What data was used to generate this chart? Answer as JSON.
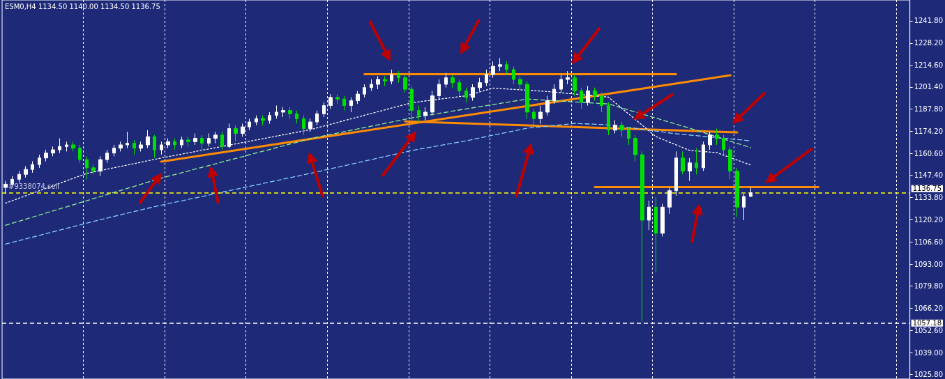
{
  "chart_data": {
    "type": "candlestick",
    "title": "ESM0,H4  1134.50 1140.00 1134.50 1136.75",
    "annotations": [
      "#9338074 sell"
    ],
    "categories": [
      null,
      null,
      null,
      null,
      null,
      null,
      null,
      null,
      null,
      null,
      null,
      null,
      null,
      null,
      null,
      null,
      null,
      null,
      null,
      null,
      null,
      null,
      null,
      null,
      null,
      null,
      null,
      null,
      null,
      null,
      null,
      null,
      null,
      null,
      null,
      null,
      null,
      null,
      null,
      null,
      null,
      null,
      null,
      null,
      null,
      null,
      null,
      null,
      null,
      null,
      null,
      null,
      null,
      null,
      null,
      null,
      null,
      null,
      null,
      null,
      null,
      null,
      null,
      null,
      null,
      null,
      null,
      null,
      null,
      null,
      null,
      null,
      null,
      null,
      null,
      null,
      null,
      null,
      null,
      null,
      null,
      null,
      null,
      null,
      null,
      null,
      null,
      null,
      null,
      null,
      null,
      null,
      null,
      null,
      null,
      null,
      null,
      null,
      null,
      null,
      null,
      null,
      null,
      null,
      null,
      null,
      null,
      null,
      null,
      null,
      null,
      null,
      null,
      null,
      null,
      null,
      null,
      null,
      null,
      null,
      null,
      null,
      null,
      null,
      null,
      null,
      null,
      null,
      null,
      null,
      null,
      null,
      null,
      null
    ],
    "colors": [
      "#ffffff",
      "#ffffff",
      "#ffffff",
      "#ffffff",
      "#ffffff",
      "#ffffff",
      "#ffffff",
      "#ffffff",
      "#ffffff",
      "#ffffff",
      "#00e000",
      "#00e000",
      "#00e000",
      "#00e000",
      "#ffffff",
      "#ffffff",
      "#ffffff",
      "#ffffff",
      "#ffffff",
      "#00e000",
      "#ffffff",
      "#ffffff",
      "#00e000",
      "#ffffff",
      "#ffffff",
      "#00e000",
      "#ffffff",
      "#00e000",
      "#ffffff",
      "#00e000",
      "#ffffff",
      "#ffffff",
      "#00e000",
      "#ffffff",
      "#00e000",
      "#ffffff",
      "#ffffff",
      "#ffffff",
      "#00e000",
      "#ffffff",
      "#ffffff",
      "#ffffff",
      "#00e000",
      "#00e000",
      "#00e000",
      "#ffffff",
      "#ffffff",
      "#ffffff",
      "#ffffff",
      "#00e000",
      "#00e000",
      "#ffffff",
      "#ffffff",
      "#ffffff",
      "#ffffff",
      "#ffffff",
      "#00e000",
      "#ffffff",
      "#00e000",
      "#00e000",
      "#00e000",
      "#00e000",
      "#ffffff",
      "#ffffff",
      "#ffffff",
      "#ffffff",
      "#00e000",
      "#00e000",
      "#00e000",
      "#ffffff",
      "#ffffff",
      "#ffffff",
      "#ffffff",
      "#ffffff",
      "#00e000",
      "#00e000",
      "#00e000",
      "#00e000",
      "#00e000",
      "#ffffff",
      "#ffffff",
      "#ffffff",
      "#ffffff",
      "#ffffff",
      "#00e000",
      "#00e000",
      "#ffffff",
      "#00e000",
      "#00e000",
      "#00e000",
      "#ffffff",
      "#00e000",
      "#00e000",
      "#00e000",
      "#00e000",
      "#ffffff",
      "#00e000",
      "#ffffff",
      "#ffffff",
      "#ffffff",
      "#00e000",
      "#ffffff",
      "#00e000",
      "#ffffff",
      "#ffffff",
      "#00e000",
      "#00e000",
      "#00e000",
      "#00e000",
      "#ffffff",
      "#ffffff",
      null,
      null,
      null,
      null,
      null,
      null,
      null,
      null,
      null,
      null,
      null,
      null,
      null,
      null,
      null,
      null,
      null,
      null,
      null,
      null,
      null,
      null,
      null
    ],
    "ohlc": [
      [
        1140,
        1144,
        1136,
        1142
      ],
      [
        1142,
        1147,
        1140,
        1145
      ],
      [
        1145,
        1150,
        1143,
        1148
      ],
      [
        1148,
        1153,
        1146,
        1151
      ],
      [
        1151,
        1156,
        1149,
        1154
      ],
      [
        1154,
        1160,
        1152,
        1158
      ],
      [
        1158,
        1163,
        1156,
        1161
      ],
      [
        1161,
        1165,
        1159,
        1163
      ],
      [
        1163,
        1170,
        1161,
        1165
      ],
      [
        1165,
        1168,
        1162,
        1166
      ],
      [
        1166,
        1168,
        1162,
        1164
      ],
      [
        1164,
        1166,
        1155,
        1157
      ],
      [
        1157,
        1159,
        1145,
        1152
      ],
      [
        1152,
        1154,
        1148,
        1150
      ],
      [
        1150,
        1159,
        1147,
        1157
      ],
      [
        1157,
        1163,
        1155,
        1161
      ],
      [
        1161,
        1166,
        1159,
        1164
      ],
      [
        1164,
        1168,
        1162,
        1166
      ],
      [
        1166,
        1174,
        1164,
        1167
      ],
      [
        1167,
        1169,
        1160,
        1164
      ],
      [
        1164,
        1168,
        1162,
        1166
      ],
      [
        1166,
        1175,
        1164,
        1171
      ],
      [
        1171,
        1172,
        1158,
        1163
      ],
      [
        1163,
        1168,
        1160,
        1166
      ],
      [
        1166,
        1170,
        1164,
        1168
      ],
      [
        1168,
        1170,
        1163,
        1166
      ],
      [
        1166,
        1171,
        1164,
        1169
      ],
      [
        1169,
        1171,
        1165,
        1168
      ],
      [
        1168,
        1173,
        1166,
        1170
      ],
      [
        1170,
        1172,
        1163,
        1167
      ],
      [
        1167,
        1173,
        1165,
        1170
      ],
      [
        1170,
        1174,
        1167,
        1172
      ],
      [
        1172,
        1174,
        1163,
        1165
      ],
      [
        1165,
        1179,
        1164,
        1176
      ],
      [
        1176,
        1178,
        1168,
        1173
      ],
      [
        1173,
        1179,
        1171,
        1177
      ],
      [
        1177,
        1182,
        1175,
        1180
      ],
      [
        1180,
        1184,
        1178,
        1182
      ],
      [
        1182,
        1184,
        1178,
        1181
      ],
      [
        1181,
        1186,
        1179,
        1184
      ],
      [
        1184,
        1190,
        1182,
        1186
      ],
      [
        1186,
        1189,
        1183,
        1187
      ],
      [
        1187,
        1189,
        1182,
        1185
      ],
      [
        1185,
        1187,
        1179,
        1182
      ],
      [
        1182,
        1184,
        1172,
        1176
      ],
      [
        1176,
        1182,
        1174,
        1180
      ],
      [
        1180,
        1187,
        1178,
        1185
      ],
      [
        1185,
        1192,
        1183,
        1190
      ],
      [
        1190,
        1197,
        1188,
        1195
      ],
      [
        1195,
        1197,
        1191,
        1194
      ],
      [
        1194,
        1196,
        1187,
        1190
      ],
      [
        1190,
        1195,
        1186,
        1193
      ],
      [
        1193,
        1199,
        1191,
        1197
      ],
      [
        1197,
        1203,
        1195,
        1201
      ],
      [
        1201,
        1206,
        1199,
        1203
      ],
      [
        1203,
        1208,
        1200,
        1206
      ],
      [
        1206,
        1208,
        1202,
        1205
      ],
      [
        1205,
        1212,
        1203,
        1209
      ],
      [
        1209,
        1211,
        1204,
        1207
      ],
      [
        1207,
        1209,
        1198,
        1200
      ],
      [
        1200,
        1202,
        1180,
        1187
      ],
      [
        1187,
        1190,
        1180,
        1184
      ],
      [
        1184,
        1189,
        1181,
        1186
      ],
      [
        1186,
        1199,
        1184,
        1196
      ],
      [
        1196,
        1206,
        1194,
        1203
      ],
      [
        1203,
        1210,
        1201,
        1207
      ],
      [
        1207,
        1209,
        1201,
        1204
      ],
      [
        1204,
        1206,
        1196,
        1199
      ],
      [
        1199,
        1201,
        1192,
        1195
      ],
      [
        1195,
        1203,
        1193,
        1201
      ],
      [
        1201,
        1207,
        1199,
        1204
      ],
      [
        1204,
        1212,
        1202,
        1209
      ],
      [
        1209,
        1217,
        1207,
        1214
      ],
      [
        1214,
        1219,
        1211,
        1215
      ],
      [
        1215,
        1217,
        1209,
        1212
      ],
      [
        1212,
        1214,
        1203,
        1206
      ],
      [
        1206,
        1208,
        1200,
        1203
      ],
      [
        1203,
        1205,
        1182,
        1186
      ],
      [
        1186,
        1188,
        1178,
        1182
      ],
      [
        1182,
        1190,
        1179,
        1186
      ],
      [
        1186,
        1196,
        1184,
        1193
      ],
      [
        1193,
        1203,
        1191,
        1200
      ],
      [
        1200,
        1209,
        1198,
        1206
      ],
      [
        1206,
        1211,
        1203,
        1207
      ],
      [
        1207,
        1209,
        1196,
        1199
      ],
      [
        1199,
        1201,
        1188,
        1192
      ],
      [
        1192,
        1202,
        1190,
        1199
      ],
      [
        1199,
        1201,
        1193,
        1196
      ],
      [
        1196,
        1198,
        1186,
        1190
      ],
      [
        1190,
        1192,
        1172,
        1175
      ],
      [
        1175,
        1181,
        1173,
        1178
      ],
      [
        1178,
        1180,
        1171,
        1175
      ],
      [
        1175,
        1177,
        1166,
        1170
      ],
      [
        1170,
        1172,
        1156,
        1160
      ],
      [
        1160,
        1162,
        1058,
        1120
      ],
      [
        1120,
        1132,
        1114,
        1128
      ],
      [
        1128,
        1134,
        1088,
        1112
      ],
      [
        1112,
        1130,
        1110,
        1128
      ],
      [
        1128,
        1140,
        1124,
        1138
      ],
      [
        1138,
        1162,
        1135,
        1158
      ],
      [
        1158,
        1162,
        1148,
        1150
      ],
      [
        1150,
        1158,
        1144,
        1155
      ],
      [
        1155,
        1164,
        1148,
        1152
      ],
      [
        1152,
        1168,
        1150,
        1166
      ],
      [
        1166,
        1174,
        1163,
        1172
      ],
      [
        1172,
        1176,
        1166,
        1170
      ],
      [
        1170,
        1172,
        1160,
        1163
      ],
      [
        1163,
        1165,
        1145,
        1150
      ],
      [
        1150,
        1152,
        1122,
        1128
      ],
      [
        1128,
        1136,
        1120,
        1134.5
      ],
      [
        1134.5,
        1140,
        1134.5,
        1136.75
      ],
      null,
      null,
      null,
      null,
      null,
      null,
      null,
      null,
      null,
      null,
      null,
      null,
      null,
      null,
      null,
      null,
      null,
      null,
      null,
      null,
      null,
      null,
      null
    ],
    "series": [
      {
        "type": "line",
        "color": "#ff8c00",
        "line_style": "solid",
        "values": [
          null,
          null,
          null,
          null,
          null,
          null,
          null,
          null,
          null,
          null,
          null,
          null,
          null,
          null,
          null,
          null,
          null,
          null,
          null,
          null,
          null,
          null,
          null,
          null,
          null,
          null,
          null,
          null,
          null,
          null,
          null,
          null,
          null,
          null,
          null,
          null,
          null,
          null,
          null,
          null,
          null,
          null,
          null,
          null,
          null,
          null,
          null,
          null,
          null,
          null,
          null,
          null,
          null,
          1209.2,
          null,
          null,
          null,
          null,
          null,
          null,
          null,
          null,
          null,
          null,
          null,
          null,
          null,
          null,
          null,
          null,
          null,
          null,
          null,
          null,
          null,
          null,
          null,
          null,
          null,
          null,
          null,
          null,
          null,
          null,
          null,
          null,
          null,
          null,
          null,
          null,
          null,
          null,
          null,
          null,
          null,
          null,
          null,
          null,
          null,
          1209.2,
          null,
          null,
          null,
          null,
          null,
          null,
          null,
          null,
          null,
          null,
          null,
          null,
          null,
          null,
          null,
          null,
          null,
          null,
          null,
          null,
          null,
          null,
          null,
          null,
          null,
          null,
          null,
          null,
          null,
          null,
          null,
          null,
          null,
          null
        ]
      },
      {
        "type": "line",
        "color": "#ff8c00",
        "line_style": "solid",
        "values": [
          null,
          null,
          null,
          null,
          null,
          null,
          null,
          null,
          null,
          null,
          null,
          null,
          null,
          null,
          null,
          null,
          null,
          null,
          null,
          null,
          null,
          null,
          null,
          1155.8,
          null,
          null,
          null,
          null,
          null,
          null,
          null,
          null,
          null,
          null,
          null,
          null,
          null,
          null,
          null,
          null,
          null,
          null,
          null,
          null,
          null,
          null,
          null,
          null,
          null,
          null,
          null,
          null,
          null,
          null,
          null,
          null,
          null,
          null,
          null,
          null,
          null,
          null,
          null,
          null,
          null,
          null,
          null,
          null,
          null,
          null,
          null,
          null,
          null,
          null,
          null,
          null,
          null,
          null,
          null,
          null,
          null,
          null,
          null,
          null,
          null,
          null,
          null,
          null,
          null,
          null,
          null,
          null,
          null,
          null,
          null,
          null,
          null,
          null,
          null,
          null,
          null,
          null,
          null,
          null,
          null,
          null,
          null,
          1208.5,
          null,
          null,
          null,
          null,
          null,
          null,
          null,
          null,
          null,
          null,
          null,
          null,
          null,
          null,
          null,
          null,
          null,
          null,
          null,
          null,
          null,
          null,
          null,
          null,
          null,
          null
        ]
      },
      {
        "type": "line",
        "color": "#ff8c00",
        "line_style": "solid",
        "values": [
          null,
          null,
          null,
          null,
          null,
          null,
          null,
          null,
          null,
          null,
          null,
          null,
          null,
          null,
          null,
          null,
          null,
          null,
          null,
          null,
          null,
          null,
          null,
          null,
          null,
          null,
          null,
          null,
          null,
          null,
          null,
          null,
          null,
          null,
          null,
          null,
          null,
          null,
          null,
          null,
          null,
          null,
          null,
          null,
          null,
          null,
          null,
          null,
          null,
          null,
          null,
          null,
          null,
          null,
          null,
          null,
          null,
          null,
          null,
          1180.4,
          null,
          null,
          null,
          null,
          null,
          null,
          null,
          null,
          null,
          null,
          null,
          null,
          null,
          null,
          null,
          null,
          null,
          null,
          null,
          null,
          null,
          null,
          null,
          null,
          null,
          null,
          null,
          null,
          null,
          null,
          null,
          null,
          null,
          null,
          null,
          null,
          null,
          null,
          null,
          null,
          null,
          null,
          null,
          null,
          null,
          null,
          null,
          null,
          1173.6,
          null,
          null,
          null,
          null,
          null,
          null,
          null,
          null,
          null,
          null,
          null,
          null,
          null,
          null,
          null,
          null,
          null,
          null,
          null,
          null,
          null,
          null,
          null,
          null,
          null
        ]
      },
      {
        "type": "line",
        "color": "#ff8c00",
        "line_style": "solid",
        "values": [
          null,
          null,
          null,
          null,
          null,
          null,
          null,
          null,
          null,
          null,
          null,
          null,
          null,
          null,
          null,
          null,
          null,
          null,
          null,
          null,
          null,
          null,
          null,
          null,
          null,
          null,
          null,
          null,
          null,
          null,
          null,
          null,
          null,
          null,
          null,
          null,
          null,
          null,
          null,
          null,
          null,
          null,
          null,
          null,
          null,
          null,
          null,
          null,
          null,
          null,
          null,
          null,
          null,
          null,
          null,
          null,
          null,
          null,
          null,
          null,
          null,
          null,
          null,
          null,
          null,
          null,
          null,
          null,
          null,
          null,
          null,
          null,
          null,
          null,
          null,
          null,
          null,
          null,
          null,
          null,
          null,
          null,
          null,
          null,
          null,
          null,
          null,
          1140.2,
          null,
          null,
          null,
          null,
          null,
          null,
          null,
          null,
          null,
          null,
          null,
          null,
          null,
          null,
          null,
          null,
          null,
          null,
          null,
          null,
          null,
          null,
          null,
          null,
          null,
          null,
          null,
          null,
          null,
          null,
          null,
          null,
          1140.2,
          null,
          null,
          null,
          null,
          null,
          null,
          null,
          null,
          null,
          null,
          null,
          null,
          null
        ]
      },
      {
        "type": "line",
        "color": "#ffffff",
        "line_style": "dotted",
        "values": [
          1130.4,
          null,
          null,
          null,
          null,
          null,
          null,
          null,
          null,
          null,
          null,
          null,
          1148.6,
          null,
          null,
          null,
          null,
          null,
          null,
          null,
          null,
          null,
          null,
          1158,
          null,
          null,
          null,
          null,
          null,
          null,
          null,
          null,
          null,
          null,
          null,
          null,
          null,
          null,
          null,
          null,
          null,
          null,
          null,
          null,
          null,
          1175.3,
          null,
          null,
          null,
          null,
          null,
          null,
          null,
          null,
          null,
          null,
          null,
          null,
          null,
          null,
          1191.8,
          null,
          null,
          null,
          null,
          null,
          null,
          null,
          1196,
          null,
          null,
          null,
          1200.7,
          null,
          null,
          null,
          null,
          null,
          null,
          null,
          1198.6,
          null,
          null,
          null,
          null,
          null,
          null,
          null,
          null,
          1195.2,
          null,
          null,
          null,
          null,
          null,
          null,
          1171.1,
          null,
          null,
          null,
          null,
          1162.6,
          null,
          null,
          null,
          1161.3,
          null,
          null,
          null,
          null,
          1153.7,
          null,
          null,
          null,
          null,
          null,
          null,
          null,
          null,
          null,
          null,
          null,
          null,
          null,
          null,
          null,
          null,
          null,
          null,
          null,
          null,
          null,
          null,
          null
        ]
      },
      {
        "type": "line",
        "color": "#90ee90",
        "line_style": "dashed",
        "values": [
          1116.9,
          null,
          null,
          null,
          null,
          null,
          null,
          null,
          null,
          null,
          null,
          null,
          null,
          null,
          null,
          null,
          null,
          null,
          null,
          null,
          null,
          null,
          null,
          1145.7,
          null,
          null,
          null,
          null,
          null,
          null,
          null,
          null,
          null,
          null,
          null,
          null,
          null,
          null,
          null,
          null,
          null,
          null,
          null,
          null,
          null,
          1169.8,
          null,
          null,
          null,
          null,
          null,
          null,
          null,
          null,
          null,
          null,
          null,
          null,
          null,
          null,
          1182.5,
          null,
          null,
          null,
          null,
          null,
          null,
          null,
          1188,
          null,
          null,
          null,
          null,
          null,
          null,
          null,
          null,
          1194,
          null,
          null,
          null,
          null,
          null,
          null,
          null,
          null,
          null,
          null,
          null,
          1191,
          null,
          null,
          null,
          null,
          null,
          null,
          null,
          null,
          null,
          null,
          null,
          1176.2,
          null,
          null,
          null,
          null,
          null,
          null,
          null,
          null,
          1164.3,
          null,
          null,
          null,
          null,
          null,
          null,
          null,
          null,
          null,
          null,
          null,
          null,
          null,
          null,
          null,
          null,
          null,
          null,
          null,
          null,
          null,
          null,
          null
        ]
      },
      {
        "type": "line",
        "color": "#87cefa",
        "line_style": "dashed",
        "values": [
          1105.4,
          null,
          null,
          null,
          null,
          null,
          null,
          null,
          null,
          null,
          null,
          null,
          null,
          null,
          1120.3,
          null,
          null,
          null,
          null,
          null,
          null,
          null,
          1128.3,
          null,
          null,
          null,
          null,
          null,
          null,
          null,
          null,
          null,
          null,
          null,
          null,
          null,
          null,
          null,
          null,
          null,
          null,
          null,
          null,
          null,
          null,
          1148.6,
          null,
          null,
          null,
          null,
          null,
          null,
          null,
          null,
          null,
          null,
          null,
          null,
          null,
          null,
          1162.6,
          null,
          null,
          null,
          null,
          null,
          null,
          null,
          1168.5,
          null,
          null,
          null,
          null,
          null,
          null,
          null,
          null,
          1176.2,
          null,
          null,
          null,
          null,
          null,
          null,
          1179.1,
          null,
          null,
          null,
          null,
          1178.3,
          null,
          null,
          null,
          null,
          null,
          null,
          null,
          null,
          null,
          1172.8,
          null,
          null,
          null,
          null,
          null,
          null,
          null,
          null,
          null,
          null,
          1168.5,
          null,
          null,
          null,
          null,
          null,
          null,
          null,
          null,
          null,
          null,
          null,
          null,
          null,
          null,
          null,
          null,
          null,
          null,
          null,
          null,
          null,
          null,
          null
        ]
      }
    ],
    "marker": "none",
    "ylim": [
      1023,
      1254.5
    ],
    "yticks": [
      {
        "value": 1025.8,
        "label": "1025.80"
      },
      {
        "value": 1039,
        "label": "1039.00"
      },
      {
        "value": 1052.6,
        "label": "1052.60"
      },
      {
        "value": 1066.2,
        "label": "1066.20"
      },
      {
        "value": 1079.8,
        "label": "1079.80"
      },
      {
        "value": 1093,
        "label": "1093.00"
      },
      {
        "value": 1106.6,
        "label": "1106.60"
      },
      {
        "value": 1120.2,
        "label": "1120.20"
      },
      {
        "value": 1133.8,
        "label": "1133.80"
      },
      {
        "value": 1147.4,
        "label": "1147.40"
      },
      {
        "value": 1160.6,
        "label": "1160.60"
      },
      {
        "value": 1174.2,
        "label": "1174.20"
      },
      {
        "value": 1187.8,
        "label": "1187.80"
      },
      {
        "value": 1201.4,
        "label": "1201.40"
      },
      {
        "value": 1214.6,
        "label": "1214.60"
      },
      {
        "value": 1228.2,
        "label": "1228.20"
      },
      {
        "value": 1241.8,
        "label": "1241.80"
      }
    ],
    "tick_labels": "y",
    "grid": "x",
    "ref_lines": [
      {
        "axis": "y",
        "value": 1136.75,
        "label": "1136.75",
        "color": "#ffff00",
        "line_style": "dashed"
      },
      {
        "axis": "y",
        "value": 1057.18,
        "label": "1057.18",
        "color": "#ffffff",
        "line_style": "dashed"
      }
    ]
  }
}
